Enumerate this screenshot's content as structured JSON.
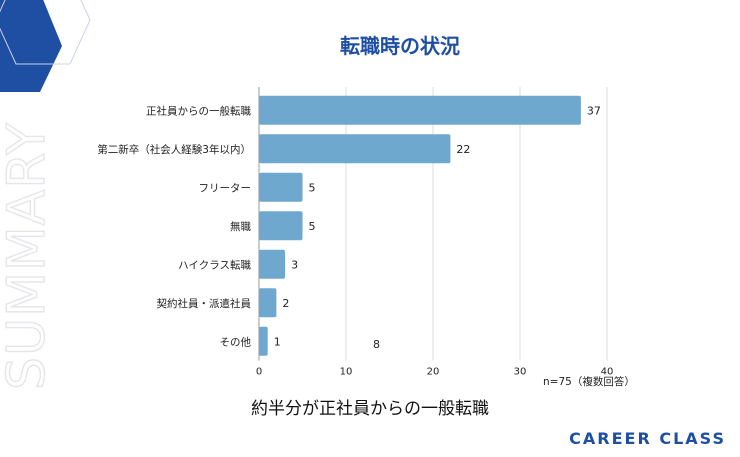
{
  "header": {
    "title": "転職時の状況"
  },
  "side_label": "SUMMARY",
  "chart_data": {
    "type": "bar",
    "orientation": "horizontal",
    "categories": [
      "正社員からの一般転職",
      "第二新卒（社会人経験3年以内）",
      "フリーター",
      "無職",
      "ハイクラス転職",
      "契約社員・派遣社員",
      "その他"
    ],
    "values": [
      37,
      22,
      5,
      5,
      3,
      2,
      1
    ],
    "xlim": [
      0,
      40
    ],
    "xticks": [
      "0",
      "10",
      "20",
      "30",
      "40"
    ],
    "bar_color": "#6fa8cf",
    "grid": true,
    "stray_label": "8"
  },
  "note": "n=75（複数回答）",
  "summary": "約半分が正社員からの一般転職",
  "brand": "CAREER CLASS",
  "colors": {
    "accent": "#1e4fa3",
    "bar": "#6fa8cf"
  }
}
